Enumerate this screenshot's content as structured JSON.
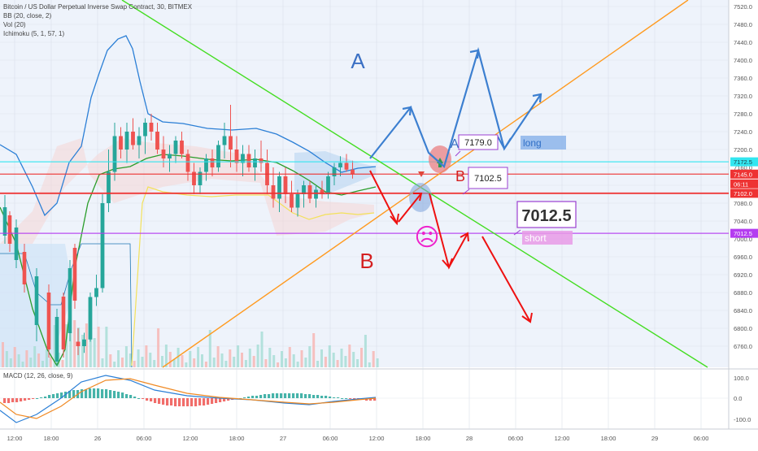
{
  "header": {
    "title": "Bitcoin / US Dollar Perpetual Inverse Swap Contract, 30, BITMEX",
    "indicators": [
      "BB (20, close, 2)",
      "Vol (20)",
      "Ichimoku (5, 1, 57, 1)"
    ],
    "macd_label": "MACD (12, 26, close, 9)"
  },
  "annotations": {
    "label_A_top": "A",
    "label_A_small": "A",
    "label_B_left": "B",
    "label_B_right": "B",
    "box_7179": "7179.0",
    "box_7102": "7102.5",
    "box_7012": "7012.5",
    "long": "long",
    "short": "short",
    "sad_face": "☹"
  },
  "colors": {
    "background": "#eef3fb",
    "green_trendline": "#44dd22",
    "orange_trendline": "#ff9a1f",
    "cyan_level": "#33e6f0",
    "red_level": "#ee3333",
    "purple_level": "#b43cf0",
    "blue_arrow": "#3c7fd0",
    "red_arrow": "#ee1111",
    "bb_upper": "#2b7fd6",
    "bb_basis": "#2a9d2a",
    "up_candle": "#26a69a",
    "down_candle": "#ef5350"
  },
  "chart_data": {
    "type": "candlestick",
    "title": "Bitcoin / US Dollar Perpetual Inverse Swap Contract, 30, BITMEX",
    "ylim": [
      6740,
      7520
    ],
    "y_ticks": [
      7520,
      7480,
      7440,
      7400,
      7360,
      7320,
      7280,
      7240,
      7200,
      7160,
      7120,
      7080,
      7040,
      7000,
      6960,
      6920,
      6880,
      6840,
      6800,
      6760
    ],
    "x_ticks": [
      "12:00",
      "18:00",
      "26",
      "06:00",
      "12:00",
      "18:00",
      "27",
      "06:00",
      "12:00",
      "18:00",
      "28",
      "06:00",
      "12:00",
      "18:00",
      "29",
      "06:00"
    ],
    "price_labels": [
      {
        "value": "7172.5",
        "color": "#33e6f0"
      },
      {
        "value": "7145.0",
        "color": "#ee3333"
      },
      {
        "value": "06:11",
        "color": "#ee3333"
      },
      {
        "value": "7102.0",
        "color": "#ee3333"
      },
      {
        "value": "7012.5",
        "color": "#b43cf0"
      }
    ],
    "horizontal_levels": [
      {
        "value": 7172.5,
        "color": "#33e6f0"
      },
      {
        "value": 7145.0,
        "color": "#ee3333"
      },
      {
        "value": 7102.0,
        "color": "#ee3333"
      },
      {
        "value": 7012.5,
        "color": "#b43cf0"
      }
    ],
    "candles": [
      [
        6770,
        6800,
        6740,
        6760
      ],
      [
        6760,
        6790,
        6745,
        6775
      ],
      [
        6775,
        6880,
        6770,
        6870
      ],
      [
        6870,
        6920,
        6850,
        6890
      ],
      [
        6890,
        7100,
        6880,
        7080
      ],
      [
        7080,
        7200,
        7060,
        7150
      ],
      [
        7150,
        7260,
        7130,
        7230
      ],
      [
        7230,
        7250,
        7180,
        7200
      ],
      [
        7200,
        7260,
        7170,
        7240
      ],
      [
        7240,
        7270,
        7200,
        7210
      ],
      [
        7210,
        7250,
        7180,
        7230
      ],
      [
        7230,
        7270,
        7190,
        7260
      ],
      [
        7260,
        7280,
        7220,
        7240
      ],
      [
        7240,
        7260,
        7190,
        7200
      ],
      [
        7200,
        7230,
        7160,
        7180
      ],
      [
        7180,
        7210,
        7150,
        7190
      ],
      [
        7190,
        7230,
        7170,
        7220
      ],
      [
        7220,
        7240,
        7180,
        7190
      ],
      [
        7190,
        7200,
        7130,
        7150
      ],
      [
        7150,
        7170,
        7100,
        7120
      ],
      [
        7120,
        7160,
        7100,
        7150
      ],
      [
        7150,
        7190,
        7130,
        7180
      ],
      [
        7180,
        7200,
        7140,
        7160
      ],
      [
        7160,
        7220,
        7150,
        7210
      ],
      [
        7210,
        7260,
        7180,
        7230
      ],
      [
        7230,
        7300,
        7160,
        7200
      ],
      [
        7200,
        7230,
        7150,
        7170
      ],
      [
        7170,
        7210,
        7140,
        7190
      ],
      [
        7190,
        7210,
        7150,
        7160
      ],
      [
        7160,
        7200,
        7130,
        7180
      ],
      [
        7180,
        7220,
        7150,
        7170
      ],
      [
        7170,
        7200,
        7100,
        7120
      ],
      [
        7120,
        7160,
        7070,
        7090
      ],
      [
        7090,
        7150,
        7060,
        7140
      ],
      [
        7140,
        7160,
        7080,
        7100
      ],
      [
        7100,
        7130,
        7060,
        7070
      ],
      [
        7070,
        7110,
        7050,
        7100
      ],
      [
        7100,
        7130,
        7070,
        7120
      ],
      [
        7120,
        7130,
        7080,
        7090
      ],
      [
        7090,
        7120,
        7070,
        7110
      ],
      [
        7110,
        7130,
        7090,
        7100
      ],
      [
        7100,
        7150,
        7090,
        7140
      ],
      [
        7140,
        7170,
        7120,
        7160
      ],
      [
        7160,
        7185,
        7140,
        7170
      ],
      [
        7170,
        7190,
        7150,
        7155
      ],
      [
        7155,
        7175,
        7135,
        7145
      ]
    ],
    "macd": {
      "ylim": [
        -130,
        110
      ],
      "ticks": [
        "100.0",
        "0.0",
        "-100.0"
      ]
    }
  }
}
